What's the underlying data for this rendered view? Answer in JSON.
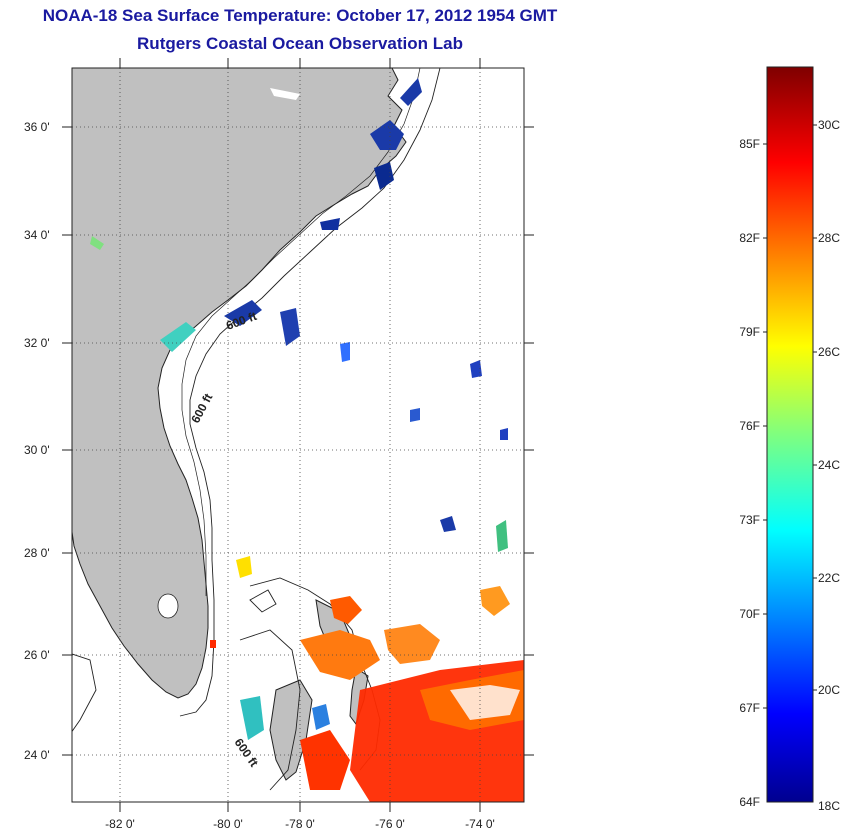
{
  "title": {
    "line1": "NOAA-18 Sea Surface Temperature:  October 17, 2012 1954 GMT",
    "line2": "Rutgers Coastal Ocean Observation Lab"
  },
  "map": {
    "lon_ticks": [
      "-82 0'",
      "-80 0'",
      "-78 0'",
      "-76 0'",
      "-74 0'"
    ],
    "lat_ticks": [
      "36 0'",
      "34 0'",
      "32 0'",
      "30 0'",
      "28 0'",
      "26 0'",
      "24 0'"
    ],
    "contour_labels": [
      "600 ft",
      "600 ft",
      "600 ft"
    ],
    "land_color": "#c0c0c0",
    "ocean_color": "#ffffff"
  },
  "colorbar": {
    "f_labels": [
      "85F",
      "82F",
      "79F",
      "76F",
      "73F",
      "70F",
      "67F",
      "64F"
    ],
    "c_labels": [
      "30C",
      "28C",
      "26C",
      "24C",
      "22C",
      "20C",
      "18C"
    ]
  }
}
